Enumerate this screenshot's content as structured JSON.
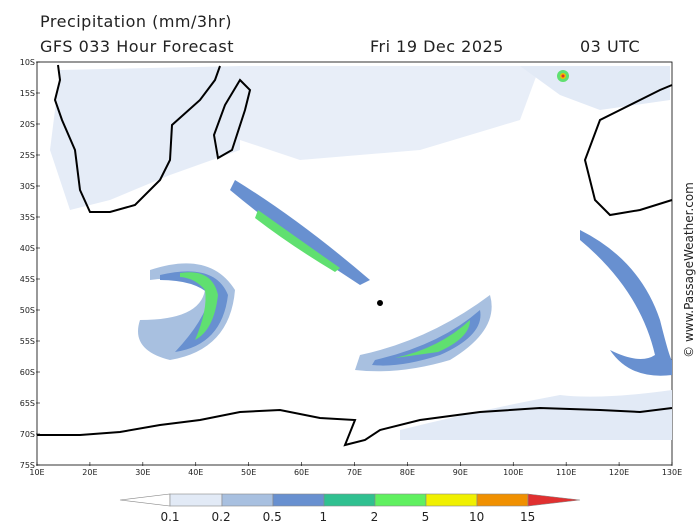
{
  "header": {
    "title": "Precipitation (mm/3hr)",
    "subtitle": "GFS 033 Hour Forecast",
    "date": "Fri 19 Dec 2025",
    "time": "03 UTC"
  },
  "map": {
    "lat_labels": [
      "10S",
      "15S",
      "20S",
      "25S",
      "30S",
      "35S",
      "40S",
      "45S",
      "50S",
      "55S",
      "60S",
      "65S",
      "70S",
      "75S"
    ],
    "lon_labels": [
      "10E",
      "20E",
      "30E",
      "40E",
      "50E",
      "60E",
      "70E",
      "80E",
      "90E",
      "100E",
      "110E",
      "120E",
      "130E"
    ]
  },
  "legend": {
    "labels": [
      "0.1",
      "0.2",
      "0.5",
      "1",
      "2",
      "5",
      "10",
      "15"
    ]
  },
  "credit": "© www.PassageWeather.com"
}
